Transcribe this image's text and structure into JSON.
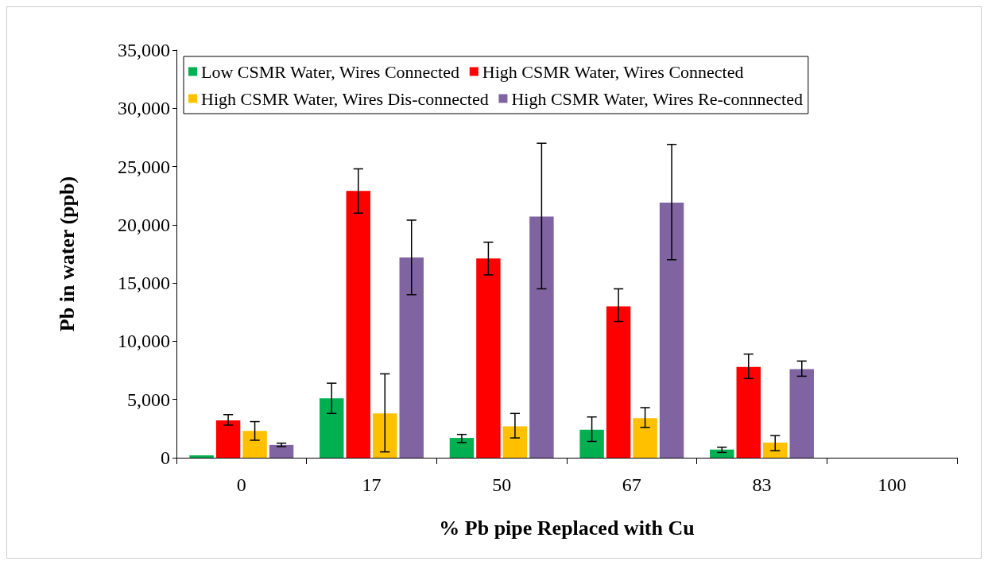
{
  "chart_data": {
    "type": "bar",
    "xlabel": "% Pb pipe Replaced with Cu",
    "ylabel": "Pb in water (ppb)",
    "categories": [
      "0",
      "17",
      "50",
      "67",
      "83",
      "100"
    ],
    "series": [
      {
        "name": "Low CSMR Water, Wires Connected",
        "color": "#00b050",
        "values": [
          200,
          5100,
          1700,
          2400,
          700,
          0
        ],
        "errors": [
          null,
          [
            3800,
            6400
          ],
          [
            1300,
            2000
          ],
          [
            1400,
            3500
          ],
          [
            450,
            900
          ],
          null
        ]
      },
      {
        "name": "High CSMR Water, Wires Connected",
        "color": "#ff0000",
        "values": [
          3200,
          22900,
          17100,
          13000,
          7800,
          0
        ],
        "errors": [
          [
            2800,
            3700
          ],
          [
            21000,
            24800
          ],
          [
            15700,
            18500
          ],
          [
            11700,
            14500
          ],
          [
            6800,
            8900
          ],
          null
        ]
      },
      {
        "name": "High CSMR Water, Wires Dis-connected",
        "color": "#ffc000",
        "values": [
          2300,
          3800,
          2700,
          3400,
          1300,
          0
        ],
        "errors": [
          [
            1500,
            3100
          ],
          [
            500,
            7200
          ],
          [
            1700,
            3800
          ],
          [
            2600,
            4300
          ],
          [
            600,
            1900
          ],
          null
        ]
      },
      {
        "name": "High CSMR Water, Wires Re-connnected",
        "color": "#8064a2",
        "values": [
          1100,
          17200,
          20700,
          21900,
          7600,
          0
        ],
        "errors": [
          [
            950,
            1250
          ],
          [
            14000,
            20400
          ],
          [
            14500,
            27000
          ],
          [
            17000,
            26900
          ],
          [
            7000,
            8300
          ],
          null
        ]
      }
    ],
    "ylim": [
      0,
      35000
    ],
    "yticks": [
      0,
      {
        "value": 5000,
        "label": "5,000"
      },
      {
        "value": 10000,
        "label": "10,000"
      },
      {
        "value": 15000,
        "label": "15,000"
      },
      {
        "value": 20000,
        "label": "20,000"
      },
      {
        "value": 25000,
        "label": "25,000"
      },
      {
        "value": 30000,
        "label": "30,000"
      },
      {
        "value": 35000,
        "label": "35,000"
      }
    ],
    "grid": false,
    "legend": "top"
  }
}
